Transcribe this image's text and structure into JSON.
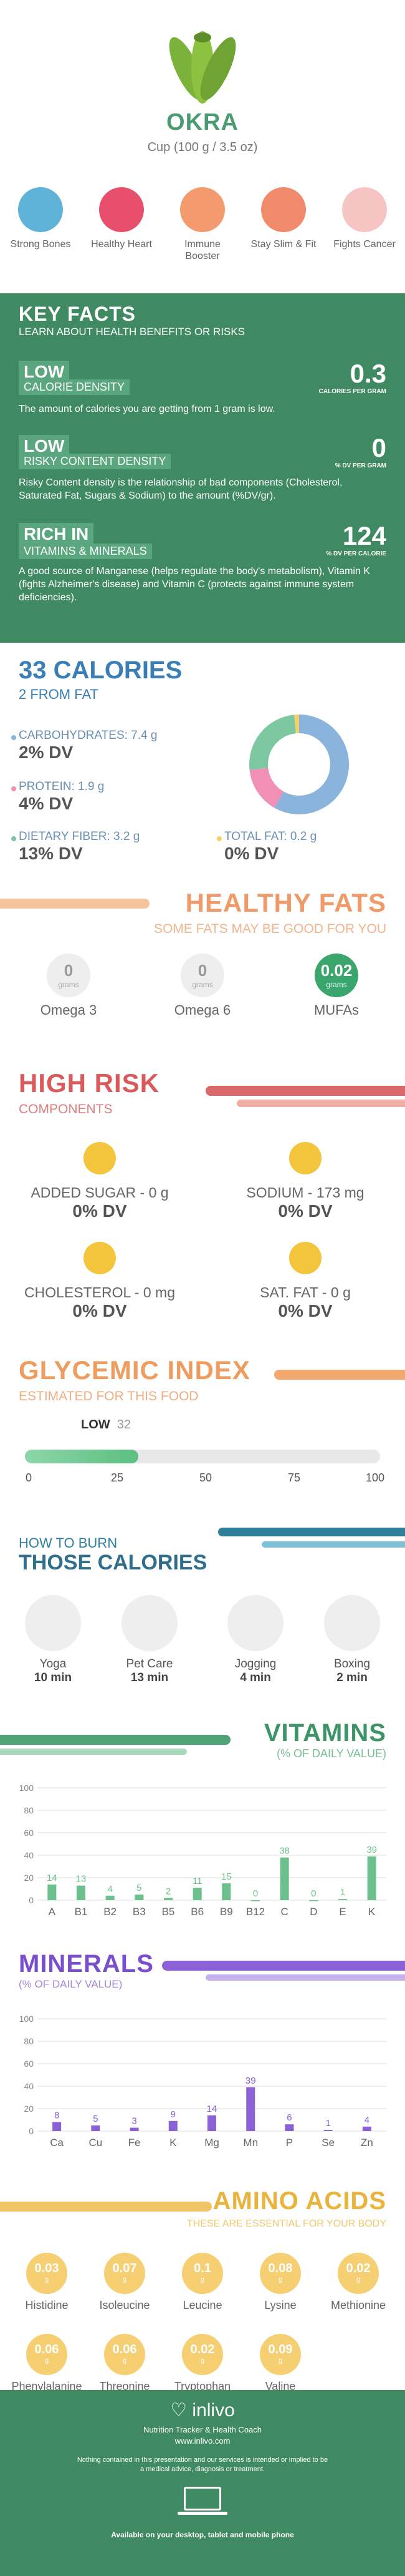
{
  "header": {
    "title": "OKRA",
    "serving": "Cup (100 g / 3.5 oz)",
    "benefits": [
      {
        "icon": "bone-icon",
        "label": "Strong Bones",
        "color": "#5eb3d6"
      },
      {
        "icon": "heart-icon",
        "label": "Healthy Heart",
        "color": "#e84f6a"
      },
      {
        "icon": "shield-icon",
        "label": "Immune Booster",
        "color": "#4a4a4a"
      },
      {
        "icon": "figure-icon",
        "label": "Stay Slim & Fit",
        "color": "#f08a6a"
      },
      {
        "icon": "ribbon-icon",
        "label": "Fights Cancer",
        "color": "#e5506b"
      }
    ]
  },
  "key_facts": {
    "title": "KEY FACTS",
    "subtitle": "LEARN ABOUT HEALTH BENEFITS OR RISKS",
    "facts": [
      {
        "level": "LOW",
        "name": "CALORIE DENSITY",
        "value": "0.3",
        "unit": "CALORIES PER GRAM",
        "desc": "The amount of calories you are getting from 1 gram is low."
      },
      {
        "level": "LOW",
        "name": "RISKY CONTENT DENSITY",
        "value": "0",
        "unit": "% DV PER GRAM",
        "desc": "Risky Content density is the relationship of bad components (Cholesterol, Saturated Fat, Sugars & Sodium) to the amount (%DV/gr)."
      },
      {
        "level": "RICH IN",
        "name": "VITAMINS & MINERALS",
        "value": "124",
        "unit": "% DV PER CALORIE",
        "desc": "A good source of Manganese (helps regulate the body's metabolism), Vitamin K (fights Alzheimer's disease) and Vitamin C (protects against immune system deficiencies)."
      }
    ]
  },
  "calories": {
    "title": "33 CALORIES",
    "subtitle": "2 FROM FAT",
    "items": [
      {
        "label": "CARBOHYDRATES: 7.4 g",
        "dv": "2% DV"
      },
      {
        "label": "PROTEIN: 1.9 g",
        "dv": "4% DV"
      },
      {
        "label": "DIETARY FIBER: 3.2 g",
        "dv": "13% DV"
      },
      {
        "label": "TOTAL FAT: 0.2 g",
        "dv": "0% DV"
      }
    ],
    "colors": {
      "carbs": "#8ab4dc",
      "protein": "#f090b4",
      "fiber": "#7dc8a0",
      "fat": "#f5d06a"
    }
  },
  "chart_data": {
    "type": "pie",
    "categories": [
      "Carbohydrates",
      "Protein",
      "Dietary Fiber",
      "Total Fat"
    ],
    "values": [
      7.4,
      1.9,
      3.2,
      0.2
    ]
  },
  "healthy_fats": {
    "title": "HEALTHY FATS",
    "subtitle": "SOME FATS MAY BE GOOD FOR YOU",
    "items": [
      {
        "value": "0",
        "unit": "grams",
        "label": "Omega 3"
      },
      {
        "value": "0",
        "unit": "grams",
        "label": "Omega 6"
      },
      {
        "value": "0.02",
        "unit": "grams",
        "label": "MUFAs"
      }
    ]
  },
  "high_risk": {
    "title": "HIGH RISK",
    "subtitle": "COMPONENTS",
    "items": [
      {
        "label": "ADDED SUGAR - 0 g",
        "dv": "0% DV"
      },
      {
        "label": "SODIUM - 173 mg",
        "dv": "0% DV"
      },
      {
        "label": "CHOLESTEROL - 0 mg",
        "dv": "0% DV"
      },
      {
        "label": "SAT. FAT - 0 g",
        "dv": "0% DV"
      }
    ]
  },
  "glycemic": {
    "title": "GLYCEMIC INDEX",
    "subtitle": "ESTIMATED FOR THIS FOOD",
    "level": "LOW",
    "value": 32,
    "ticks": [
      "0",
      "25",
      "50",
      "75",
      "100"
    ]
  },
  "burn": {
    "title_small": "HOW TO BURN",
    "title_big": "THOSE CALORIES",
    "items": [
      {
        "icon": "yoga-icon",
        "label": "Yoga",
        "time": "10 min"
      },
      {
        "icon": "dog-walk-icon",
        "label": "Pet Care",
        "time": "13 min"
      },
      {
        "icon": "jogging-icon",
        "label": "Jogging",
        "time": "4 min"
      },
      {
        "icon": "boxing-icon",
        "label": "Boxing",
        "time": "2 min"
      }
    ]
  },
  "vitamins": {
    "title": "VITAMINS",
    "subtitle": "(% OF DAILY VALUE)",
    "color": "#6cc08e",
    "yticks": [
      "100",
      "80",
      "60",
      "40",
      "20",
      "0"
    ],
    "categories": [
      "A",
      "B1",
      "B2",
      "B3",
      "B5",
      "B6",
      "B9",
      "B12",
      "C",
      "D",
      "E",
      "K"
    ],
    "values": [
      14,
      13,
      4,
      5,
      2,
      11,
      15,
      0,
      38,
      0,
      1,
      39
    ]
  },
  "minerals": {
    "title": "MINERALS",
    "subtitle": "(% OF DAILY VALUE)",
    "color": "#8a62d6",
    "yticks": [
      "100",
      "80",
      "60",
      "40",
      "20",
      "0"
    ],
    "categories": [
      "Ca",
      "Cu",
      "Fe",
      "K",
      "Mg",
      "Mn",
      "P",
      "Se",
      "Zn"
    ],
    "values": [
      8,
      5,
      3,
      9,
      14,
      39,
      6,
      1,
      4
    ]
  },
  "amino": {
    "title": "AMINO ACIDS",
    "subtitle": "THESE ARE ESSENTIAL FOR YOUR BODY",
    "unit": "g",
    "items": [
      {
        "value": "0.03",
        "label": "Histidine"
      },
      {
        "value": "0.07",
        "label": "Isoleucine"
      },
      {
        "value": "0.1",
        "label": "Leucine"
      },
      {
        "value": "0.08",
        "label": "Lysine"
      },
      {
        "value": "0.02",
        "label": "Methionine"
      },
      {
        "value": "0.06",
        "label": "Phenylalanine"
      },
      {
        "value": "0.06",
        "label": "Threonine"
      },
      {
        "value": "0.02",
        "label": "Tryptophan"
      },
      {
        "value": "0.09",
        "label": "Valine"
      }
    ]
  },
  "footer": {
    "brand": "inlivo",
    "tagline": "Nutrition Tracker & Health Coach",
    "url": "www.inlivo.com",
    "disclaimer": "Nothing contained in this presentation and our services is intended or implied to be a medical advice, diagnosis or treatment.",
    "availability": "Available on your desktop, tablet and mobile phone"
  }
}
